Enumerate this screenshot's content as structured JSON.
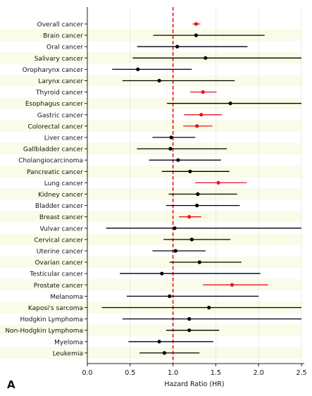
{
  "panel_label": "A",
  "chart_data": {
    "type": "forest",
    "xlabel": "Hazard Ratio (HR)",
    "ylabel": "",
    "title": "",
    "xlim": [
      0.0,
      2.5
    ],
    "xticks": [
      "0.0",
      "0.5",
      "1.0",
      "1.5",
      "2.0",
      "2.5"
    ],
    "reference_line": 1.0,
    "grid": "vertical dotted",
    "colors": {
      "significant": "#e8141b",
      "non_significant": "#000000",
      "reference": "#e8141b",
      "band": "#fafbe8"
    },
    "rows": [
      {
        "label": "Overall cancer",
        "hr": 1.27,
        "lo": 1.23,
        "hi": 1.32,
        "significant": true
      },
      {
        "label": "Brain cancer",
        "hr": 1.27,
        "lo": 0.77,
        "hi": 2.07,
        "significant": false
      },
      {
        "label": "Oral cancer",
        "hr": 1.05,
        "lo": 0.58,
        "hi": 1.87,
        "significant": false
      },
      {
        "label": "Salivary cancer",
        "hr": 1.38,
        "lo": 0.53,
        "hi": 2.5,
        "significant": false
      },
      {
        "label": "Oropharynx cancer",
        "hr": 0.59,
        "lo": 0.29,
        "hi": 1.22,
        "significant": false
      },
      {
        "label": "Larynx cancer",
        "hr": 0.84,
        "lo": 0.41,
        "hi": 1.72,
        "significant": false
      },
      {
        "label": "Thyroid cancer",
        "hr": 1.35,
        "lo": 1.2,
        "hi": 1.51,
        "significant": true
      },
      {
        "label": "Esophagus cancer",
        "hr": 1.67,
        "lo": 0.93,
        "hi": 2.5,
        "significant": false
      },
      {
        "label": "Gastric cancer",
        "hr": 1.33,
        "lo": 1.13,
        "hi": 1.57,
        "significant": true
      },
      {
        "label": "Colorectal cancer",
        "hr": 1.28,
        "lo": 1.12,
        "hi": 1.46,
        "significant": true
      },
      {
        "label": "Liver cancer",
        "hr": 0.98,
        "lo": 0.76,
        "hi": 1.26,
        "significant": false
      },
      {
        "label": "Gallbladder cancer",
        "hr": 0.97,
        "lo": 0.58,
        "hi": 1.63,
        "significant": false
      },
      {
        "label": "Cholangiocarcinoma",
        "hr": 1.06,
        "lo": 0.72,
        "hi": 1.56,
        "significant": false
      },
      {
        "label": "Pancreatic cancer",
        "hr": 1.2,
        "lo": 0.87,
        "hi": 1.66,
        "significant": false
      },
      {
        "label": "Lung cancer",
        "hr": 1.53,
        "lo": 1.26,
        "hi": 1.86,
        "significant": true
      },
      {
        "label": "Kidney cancer",
        "hr": 1.29,
        "lo": 0.95,
        "hi": 1.75,
        "significant": false
      },
      {
        "label": "Bladder cancer",
        "hr": 1.28,
        "lo": 0.92,
        "hi": 1.78,
        "significant": false
      },
      {
        "label": "Breast cancer",
        "hr": 1.19,
        "lo": 1.07,
        "hi": 1.33,
        "significant": true
      },
      {
        "label": "Vulvar cancer",
        "hr": 1.02,
        "lo": 0.22,
        "hi": 2.5,
        "significant": false
      },
      {
        "label": "Cervical cancer",
        "hr": 1.22,
        "lo": 0.89,
        "hi": 1.67,
        "significant": false
      },
      {
        "label": "Uterine cancer",
        "hr": 1.03,
        "lo": 0.76,
        "hi": 1.38,
        "significant": false
      },
      {
        "label": "Ovarian cancer",
        "hr": 1.31,
        "lo": 0.96,
        "hi": 1.8,
        "significant": false
      },
      {
        "label": "Testicular cancer",
        "hr": 0.87,
        "lo": 0.38,
        "hi": 2.02,
        "significant": false
      },
      {
        "label": "Prostate cancer",
        "hr": 1.69,
        "lo": 1.35,
        "hi": 2.11,
        "significant": true
      },
      {
        "label": "Melanoma",
        "hr": 0.96,
        "lo": 0.46,
        "hi": 2.0,
        "significant": false
      },
      {
        "label": "Kaposi's sarcoma",
        "hr": 1.42,
        "lo": 0.17,
        "hi": 2.5,
        "significant": false
      },
      {
        "label": "Hodgkin Lymphoma",
        "hr": 1.19,
        "lo": 0.41,
        "hi": 2.5,
        "significant": false
      },
      {
        "label": "Non-Hodgkin Lymphoma",
        "hr": 1.19,
        "lo": 0.92,
        "hi": 1.54,
        "significant": false
      },
      {
        "label": "Myeloma",
        "hr": 0.84,
        "lo": 0.48,
        "hi": 1.47,
        "significant": false
      },
      {
        "label": "Leukemia",
        "hr": 0.9,
        "lo": 0.61,
        "hi": 1.31,
        "significant": false
      }
    ]
  }
}
